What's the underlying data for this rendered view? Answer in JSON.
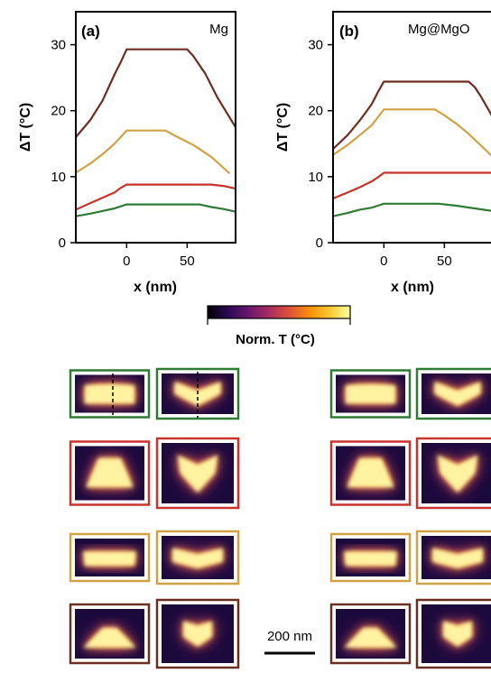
{
  "chart_data": [
    {
      "type": "line",
      "panel_label": "(a)",
      "material": "Mg",
      "xlabel": "x (nm)",
      "ylabel": "ΔT (°C)",
      "xlim": [
        -42,
        90
      ],
      "ylim": [
        0,
        35
      ],
      "xticks": [
        0,
        50
      ],
      "yticks": [
        0,
        10,
        20,
        30
      ],
      "grid": false,
      "series": [
        {
          "color": "#6b2e22",
          "x": [
            -42,
            -30,
            -20,
            -10,
            -5,
            0,
            50,
            55,
            65,
            75,
            90
          ],
          "y": [
            16,
            18.6,
            21.5,
            25.5,
            27.3,
            29.3,
            29.3,
            28.3,
            25.6,
            22,
            17.5
          ]
        },
        {
          "color": "#d0a244",
          "x": [
            -42,
            -30,
            -20,
            -10,
            -5,
            0,
            32,
            40,
            55,
            70,
            85
          ],
          "y": [
            10.6,
            12,
            13.4,
            15,
            16,
            17,
            17,
            16.2,
            14.8,
            13,
            10.5
          ]
        },
        {
          "color": "#c8332d",
          "x": [
            -42,
            -30,
            -20,
            -10,
            -5,
            0,
            70,
            80,
            90
          ],
          "y": [
            5,
            6,
            6.8,
            7.6,
            8.3,
            8.8,
            8.8,
            8.6,
            8.2
          ]
        },
        {
          "color": "#2f7a34",
          "x": [
            -42,
            -30,
            -20,
            -10,
            -5,
            0,
            60,
            70,
            80,
            90
          ],
          "y": [
            4,
            4.4,
            4.8,
            5.2,
            5.5,
            5.8,
            5.8,
            5.4,
            5.1,
            4.7
          ]
        }
      ]
    },
    {
      "type": "line",
      "panel_label": "(b)",
      "material": "Mg@MgO",
      "xlabel": "x (nm)",
      "ylabel": "ΔT (°C)",
      "xlim": [
        -42,
        90
      ],
      "ylim": [
        0,
        35
      ],
      "xticks": [
        0,
        50
      ],
      "yticks": [
        0,
        10,
        20,
        30
      ],
      "grid": false,
      "series": [
        {
          "color": "#6b2e22",
          "x": [
            -42,
            -30,
            -20,
            -10,
            -5,
            0,
            70,
            75,
            80,
            90
          ],
          "y": [
            14.2,
            16.3,
            18.5,
            21,
            22.8,
            24.4,
            24.4,
            23.6,
            22.2,
            19
          ]
        },
        {
          "color": "#d0a244",
          "x": [
            -42,
            -30,
            -20,
            -10,
            -5,
            0,
            42,
            50,
            60,
            70,
            90
          ],
          "y": [
            13.3,
            14.8,
            16.3,
            17.8,
            19,
            20.2,
            20.2,
            19.3,
            18,
            16.5,
            13
          ]
        },
        {
          "color": "#c8332d",
          "x": [
            -42,
            -30,
            -20,
            -10,
            -5,
            0,
            90
          ],
          "y": [
            6.7,
            7.6,
            8.4,
            9.3,
            9.9,
            10.6,
            10.6
          ]
        },
        {
          "color": "#2f7a34",
          "x": [
            -42,
            -30,
            -20,
            -10,
            -5,
            0,
            45,
            60,
            75,
            90
          ],
          "y": [
            4,
            4.5,
            5,
            5.3,
            5.6,
            5.9,
            5.9,
            5.6,
            5.2,
            4.8
          ]
        }
      ]
    }
  ],
  "colorbar": {
    "label": "Norm. T (°C)",
    "colormap": "inferno",
    "colors": [
      "#000004",
      "#2a0a55",
      "#6a176e",
      "#a52c60",
      "#dd513a",
      "#f98e09",
      "#f9c932",
      "#fcffa4"
    ]
  },
  "scale_bar": {
    "label": "200 nm"
  },
  "thermal_maps": {
    "row_colors": [
      "#2f7a34",
      "#c8332d",
      "#d0a244",
      "#6b2e22"
    ]
  }
}
